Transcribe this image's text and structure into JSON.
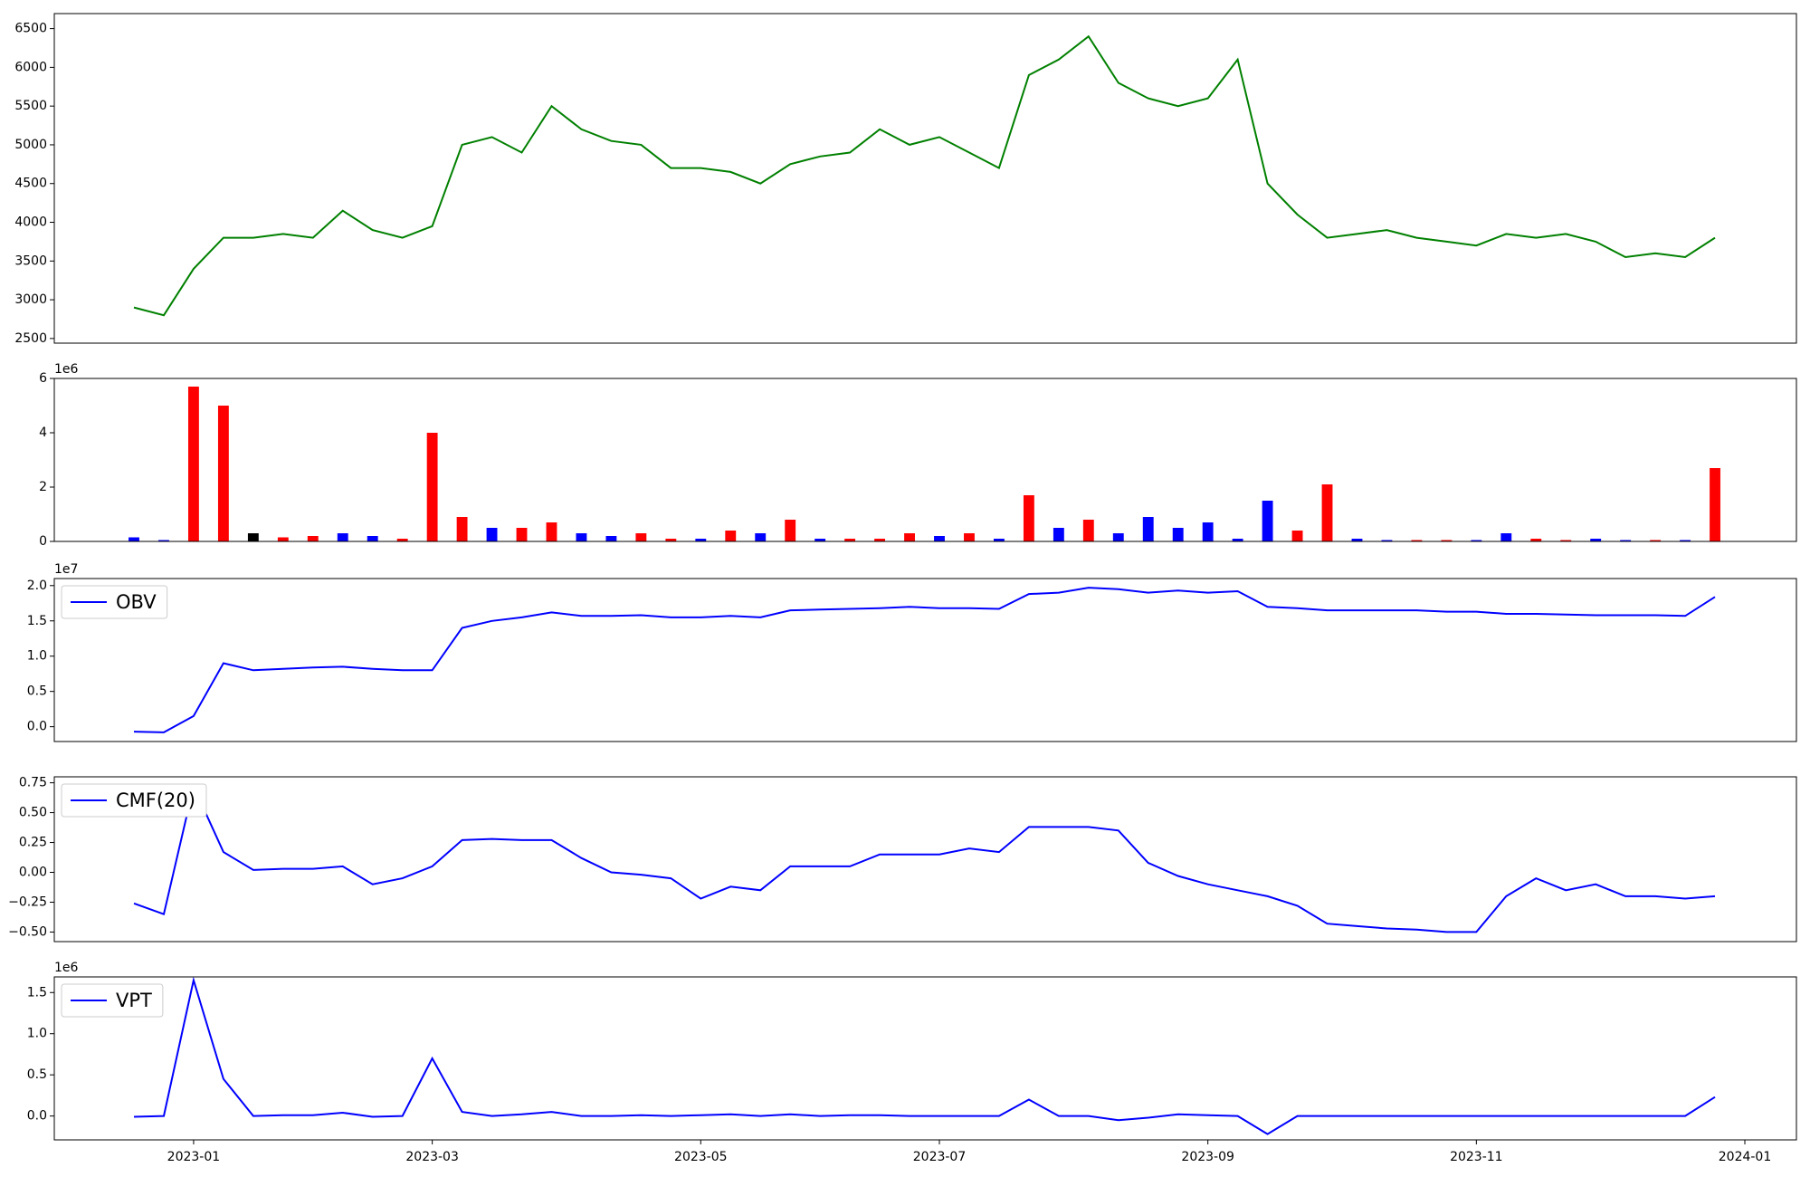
{
  "chart_data": [
    {
      "type": "line",
      "series": [
        {
          "color": "green",
          "values": [
            2900,
            2800,
            3400,
            3800,
            3800,
            3850,
            3800,
            4150,
            3900,
            3800,
            3950,
            5000,
            5100,
            4900,
            5500,
            5200,
            5050,
            5000,
            4700,
            4700,
            4650,
            4500,
            4750,
            4850,
            4900,
            5200,
            5000,
            5100,
            4900,
            4700,
            5900,
            6100,
            6400,
            5800,
            5600,
            5500,
            5600,
            6100,
            4500,
            4100,
            3800,
            3850,
            3900,
            3800,
            3750,
            3700,
            3850,
            3800,
            3850,
            3750,
            3550,
            3600,
            3550,
            3800,
            null
          ]
        }
      ],
      "ylim": [
        2440,
        6694
      ],
      "yticks": [
        2500,
        3000,
        3500,
        4000,
        4500,
        5000,
        5500,
        6000,
        6500
      ]
    },
    {
      "type": "bar",
      "values": [
        150000,
        50000,
        5700000,
        5000000,
        300000,
        150000,
        200000,
        300000,
        200000,
        100000,
        4000000,
        900000,
        500000,
        500000,
        700000,
        300000,
        200000,
        300000,
        100000,
        100000,
        400000,
        300000,
        800000,
        100000,
        100000,
        100000,
        300000,
        200000,
        300000,
        100000,
        1700000,
        500000,
        800000,
        300000,
        900000,
        500000,
        700000,
        100000,
        1500000,
        400000,
        2100000,
        100000,
        50000,
        50000,
        50000,
        50000,
        300000,
        100000,
        50000,
        100000,
        50000,
        50000,
        50000,
        2700000,
        null
      ],
      "colors": [
        "blue",
        "blue",
        "red",
        "red",
        "black",
        "red",
        "red",
        "blue",
        "blue",
        "red",
        "red",
        "red",
        "blue",
        "red",
        "red",
        "blue",
        "blue",
        "red",
        "red",
        "blue",
        "red",
        "blue",
        "red",
        "blue",
        "red",
        "red",
        "red",
        "blue",
        "red",
        "blue",
        "red",
        "blue",
        "red",
        "blue",
        "blue",
        "blue",
        "blue",
        "blue",
        "blue",
        "red",
        "red",
        "blue",
        "blue",
        "red",
        "red",
        "blue",
        "blue",
        "red",
        "red",
        "blue",
        "blue",
        "red",
        "blue",
        "red",
        null
      ],
      "offset_label": "1e6",
      "ylim": [
        0,
        6000000
      ],
      "yticks": [
        0,
        {
          "value": 2000000,
          "label": "2"
        },
        {
          "value": 4000000,
          "label": "4"
        },
        {
          "value": 6000000,
          "label": "6"
        }
      ]
    },
    {
      "type": "line",
      "legend": "upper left",
      "series": [
        {
          "name": "OBV",
          "color": "blue",
          "values": [
            -700000,
            -800000,
            1500000,
            9000000,
            8000000,
            8200000,
            8400000,
            8500000,
            8200000,
            8000000,
            8000000,
            14000000,
            15000000,
            15500000,
            16200000,
            15700000,
            15700000,
            15800000,
            15500000,
            15500000,
            15700000,
            15500000,
            16500000,
            16600000,
            16700000,
            16800000,
            17000000,
            16800000,
            16800000,
            16700000,
            18800000,
            19000000,
            19700000,
            19500000,
            19000000,
            19300000,
            19000000,
            19200000,
            17000000,
            16800000,
            16500000,
            16500000,
            16500000,
            16500000,
            16300000,
            16300000,
            16000000,
            16000000,
            15900000,
            15800000,
            15800000,
            15800000,
            15700000,
            18400000,
            null
          ]
        }
      ],
      "offset_label": "1e7",
      "ylim": [
        -2100000,
        21000000
      ],
      "yticks": [
        {
          "value": 0,
          "label": "0.0"
        },
        {
          "value": 5000000,
          "label": "0.5"
        },
        {
          "value": 10000000,
          "label": "1.0"
        },
        {
          "value": 15000000,
          "label": "1.5"
        },
        {
          "value": 20000000,
          "label": "2.0"
        }
      ]
    },
    {
      "type": "line",
      "legend": "upper left",
      "series": [
        {
          "name": "CMF(20)",
          "color": "blue",
          "values": [
            -0.26,
            -0.35,
            0.72,
            0.17,
            0.02,
            0.03,
            0.03,
            0.05,
            -0.1,
            -0.05,
            0.05,
            0.27,
            0.28,
            0.27,
            0.27,
            0.12,
            0,
            -0.02,
            -0.05,
            -0.22,
            -0.12,
            -0.15,
            0.05,
            0.05,
            0.05,
            0.15,
            0.15,
            0.15,
            0.2,
            0.17,
            0.38,
            0.38,
            0.38,
            0.35,
            0.08,
            -0.03,
            -0.1,
            -0.15,
            -0.2,
            -0.28,
            -0.43,
            -0.45,
            -0.47,
            -0.48,
            -0.5,
            -0.5,
            -0.2,
            -0.05,
            -0.15,
            -0.1,
            -0.2,
            -0.2,
            -0.22,
            -0.2,
            null
          ]
        }
      ],
      "ylim": [
        -0.58,
        0.8
      ],
      "yticks": [
        {
          "value": -0.5,
          "label": "−0.50"
        },
        {
          "value": -0.25,
          "label": "−0.25"
        },
        {
          "value": 0,
          "label": "0.00"
        },
        0.25,
        {
          "value": 0.5,
          "label": "0.50"
        },
        0.75
      ]
    },
    {
      "type": "line",
      "legend": "upper left",
      "series": [
        {
          "name": "VPT",
          "color": "blue",
          "values": [
            -10000,
            0,
            1650000,
            450000,
            0,
            10000,
            10000,
            40000,
            -10000,
            0,
            700000,
            50000,
            0,
            20000,
            50000,
            0,
            0,
            10000,
            0,
            10000,
            20000,
            0,
            20000,
            0,
            10000,
            10000,
            0,
            0,
            0,
            0,
            200000,
            0,
            0,
            -50000,
            -20000,
            20000,
            10000,
            0,
            -220000,
            0,
            0,
            0,
            0,
            0,
            0,
            0,
            0,
            0,
            0,
            0,
            0,
            0,
            0,
            230000,
            null
          ]
        }
      ],
      "offset_label": "1e6",
      "categories": [
        null,
        null,
        "2023-01",
        null,
        null,
        null,
        null,
        null,
        null,
        null,
        "2023-03",
        null,
        null,
        null,
        null,
        null,
        null,
        null,
        null,
        "2023-05",
        null,
        null,
        null,
        null,
        null,
        null,
        null,
        "2023-07",
        null,
        null,
        null,
        null,
        null,
        null,
        null,
        null,
        "2023-09",
        null,
        null,
        null,
        null,
        null,
        null,
        null,
        null,
        "2023-11",
        null,
        null,
        null,
        null,
        null,
        null,
        null,
        null,
        "2024-01"
      ],
      "ylim": [
        -290000,
        1690000
      ],
      "yticks": [
        {
          "value": 0,
          "label": "0.0"
        },
        {
          "value": 500000,
          "label": "0.5"
        },
        {
          "value": 1000000,
          "label": "1.0"
        },
        {
          "value": 1500000,
          "label": "1.5"
        }
      ]
    }
  ]
}
